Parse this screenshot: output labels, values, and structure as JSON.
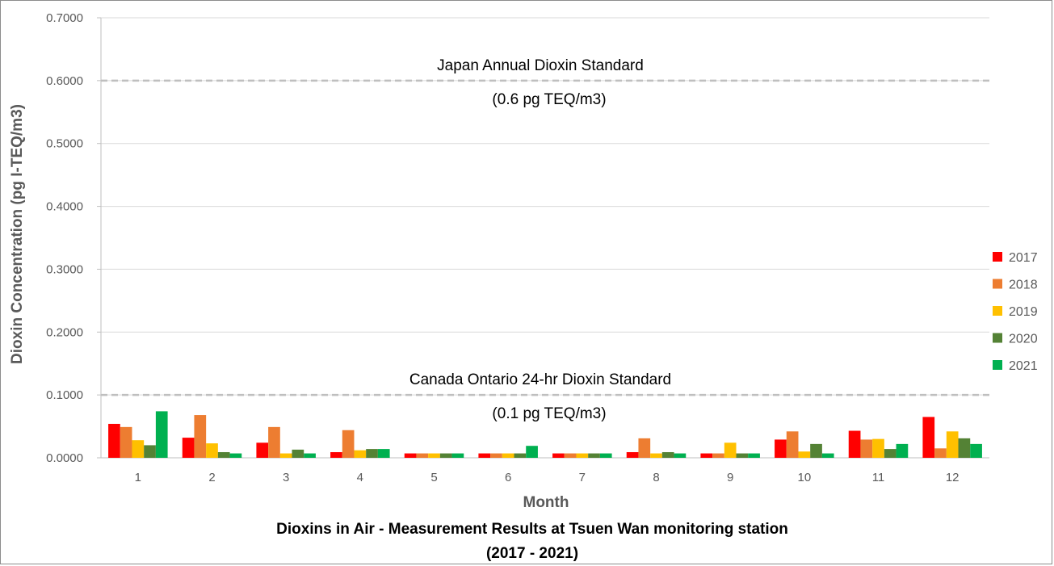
{
  "chart_data": {
    "type": "bar",
    "title_lines": [
      "Dioxins in Air - Measurement Results at Tsuen Wan monitoring station",
      "(2017 - 2021)"
    ],
    "xlabel": "Month",
    "ylabel": "Dioxin Concentration (pg I-TEQ/m3)",
    "ylim": [
      0,
      0.7
    ],
    "yticks": [
      "0.0000",
      "0.1000",
      "0.2000",
      "0.3000",
      "0.4000",
      "0.5000",
      "0.6000",
      "0.7000"
    ],
    "ytick_values": [
      0,
      0.1,
      0.2,
      0.3,
      0.4,
      0.5,
      0.6,
      0.7
    ],
    "categories": [
      "1",
      "2",
      "3",
      "4",
      "5",
      "6",
      "7",
      "8",
      "9",
      "10",
      "11",
      "12"
    ],
    "grid": true,
    "legend_position": "right",
    "series": [
      {
        "name": "2017",
        "color": "#ff0000",
        "values": [
          0.054,
          0.032,
          0.024,
          0.009,
          0.007,
          0.007,
          0.007,
          0.009,
          0.007,
          0.029,
          0.043,
          0.065
        ]
      },
      {
        "name": "2018",
        "color": "#ed7d31",
        "values": [
          0.049,
          0.068,
          0.049,
          0.044,
          0.007,
          0.007,
          0.007,
          0.031,
          0.007,
          0.042,
          0.029,
          0.015
        ]
      },
      {
        "name": "2019",
        "color": "#ffc000",
        "values": [
          0.028,
          0.023,
          0.007,
          0.012,
          0.007,
          0.007,
          0.007,
          0.007,
          0.024,
          0.01,
          0.03,
          0.042
        ]
      },
      {
        "name": "2020",
        "color": "#548235",
        "values": [
          0.02,
          0.009,
          0.013,
          0.014,
          0.007,
          0.007,
          0.007,
          0.009,
          0.007,
          0.022,
          0.014,
          0.031
        ]
      },
      {
        "name": "2021",
        "color": "#00b050",
        "values": [
          0.074,
          0.007,
          0.007,
          0.014,
          0.007,
          0.019,
          0.007,
          0.007,
          0.007,
          0.007,
          0.022,
          0.022
        ]
      }
    ],
    "reference_lines": [
      {
        "value": 0.6,
        "label": "Japan Annual Dioxin Standard",
        "sublabel": "(0.6 pg TEQ/m3)"
      },
      {
        "value": 0.1,
        "label": "Canada Ontario 24-hr Dioxin Standard",
        "sublabel": "(0.1 pg TEQ/m3)"
      }
    ]
  }
}
